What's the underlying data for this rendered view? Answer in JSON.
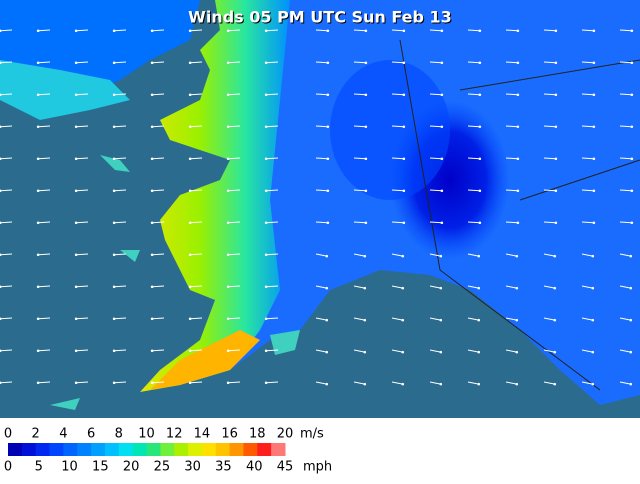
{
  "title": "Winds 05 PM UTC Sun Feb 13",
  "legend": {
    "colors": [
      "#0000b4",
      "#0010d8",
      "#0028f0",
      "#0046ff",
      "#0064ff",
      "#0082ff",
      "#00a0ff",
      "#00c0ff",
      "#00e0f0",
      "#00e6b4",
      "#28e678",
      "#6ef03c",
      "#aaf000",
      "#dcf000",
      "#ffe100",
      "#ffc300",
      "#ff9600",
      "#ff5a00",
      "#ff1e1e",
      "#ff7878"
    ],
    "ms_labels": [
      "0",
      "2",
      "4",
      "6",
      "8",
      "10",
      "12",
      "14",
      "16",
      "18",
      "20"
    ],
    "ms_unit": "m/s",
    "mph_labels": [
      "0",
      "5",
      "10",
      "15",
      "20",
      "25",
      "30",
      "35",
      "40",
      "45"
    ],
    "mph_unit": "mph"
  }
}
